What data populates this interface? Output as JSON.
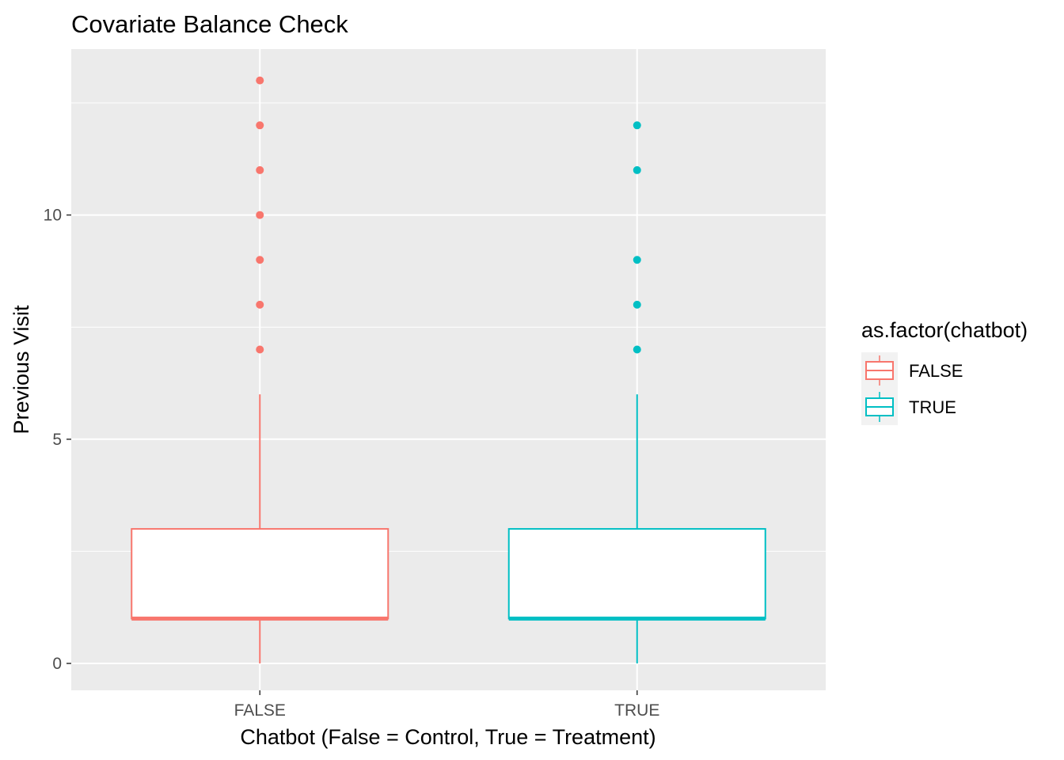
{
  "chart_data": {
    "type": "boxplot",
    "title": "Covariate Balance Check",
    "xlabel": "Chatbot (False = Control, True = Treatment)",
    "ylabel": "Previous Visit",
    "categories": [
      "FALSE",
      "TRUE"
    ],
    "ylim": [
      -0.6,
      13.7
    ],
    "yticks": [
      0,
      5,
      10
    ],
    "grid": true,
    "legend": {
      "title": "as.factor(chatbot)",
      "placement": "right",
      "entries": [
        "FALSE",
        "TRUE"
      ]
    },
    "series": [
      {
        "category": "FALSE",
        "color": "#F8766D",
        "min": 0,
        "q1": 1,
        "median": 1,
        "q3": 3,
        "max": 6,
        "outliers": [
          7,
          8,
          9,
          10,
          11,
          12,
          13
        ]
      },
      {
        "category": "TRUE",
        "color": "#00BFC4",
        "min": 0,
        "q1": 1,
        "median": 1,
        "q3": 3,
        "max": 6,
        "outliers": [
          7,
          8,
          9,
          11,
          12
        ]
      }
    ]
  }
}
